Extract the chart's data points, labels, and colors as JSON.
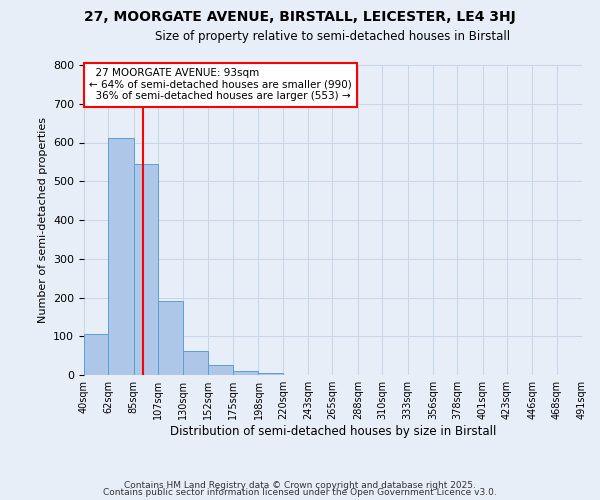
{
  "title_line1": "27, MOORGATE AVENUE, BIRSTALL, LEICESTER, LE4 3HJ",
  "title_line2": "Size of property relative to semi-detached houses in Birstall",
  "xlabel": "Distribution of semi-detached houses by size in Birstall",
  "ylabel": "Number of semi-detached properties",
  "property_size": 93,
  "property_label": "27 MOORGATE AVENUE: 93sqm",
  "pct_smaller": 64,
  "pct_larger": 36,
  "count_smaller": 990,
  "count_larger": 553,
  "bins": [
    40,
    62,
    85,
    107,
    130,
    152,
    175,
    198,
    220,
    243,
    265,
    288,
    310,
    333,
    356,
    378,
    401,
    423,
    446,
    468,
    491
  ],
  "bin_labels": [
    "40sqm",
    "62sqm",
    "85sqm",
    "107sqm",
    "130sqm",
    "152sqm",
    "175sqm",
    "198sqm",
    "220sqm",
    "243sqm",
    "265sqm",
    "288sqm",
    "310sqm",
    "333sqm",
    "356sqm",
    "378sqm",
    "401sqm",
    "423sqm",
    "446sqm",
    "468sqm",
    "491sqm"
  ],
  "counts": [
    107,
    611,
    545,
    190,
    62,
    27,
    10,
    5,
    0,
    0,
    0,
    0,
    0,
    0,
    0,
    0,
    0,
    0,
    0,
    0
  ],
  "bar_color": "#aec6e8",
  "bar_edge_color": "#5a9fd4",
  "vline_color": "red",
  "grid_color": "#c8d4e8",
  "background_color": "#e8eef8",
  "ylim": [
    0,
    800
  ],
  "yticks": [
    0,
    100,
    200,
    300,
    400,
    500,
    600,
    700,
    800
  ],
  "footnote1": "Contains HM Land Registry data © Crown copyright and database right 2025.",
  "footnote2": "Contains public sector information licensed under the Open Government Licence v3.0."
}
